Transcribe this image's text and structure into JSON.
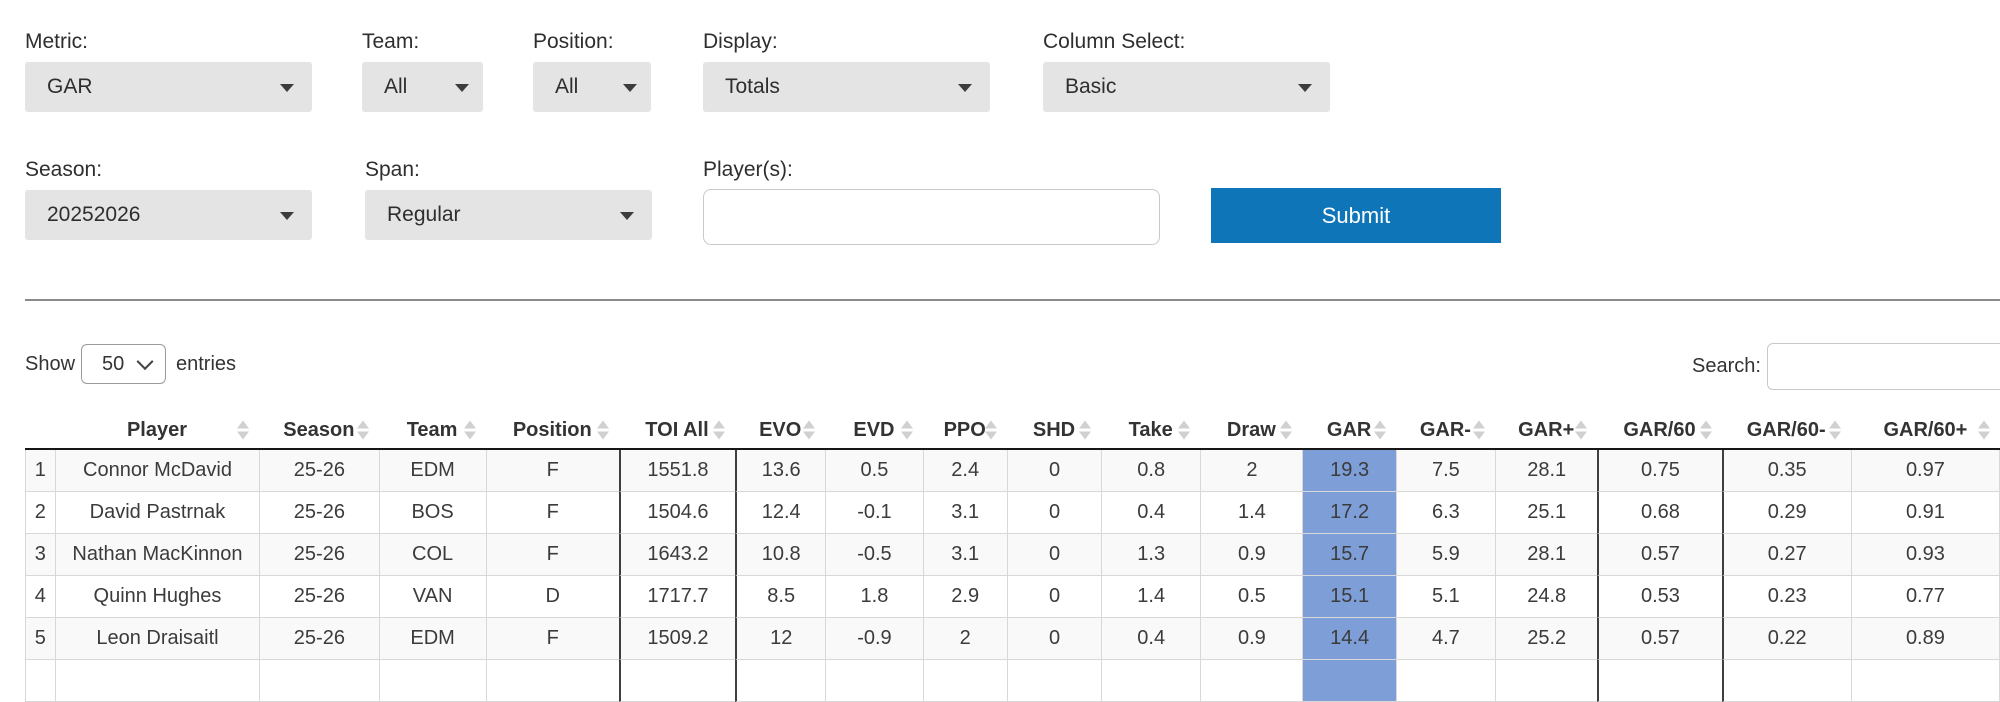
{
  "filters": {
    "metric": {
      "label": "Metric:",
      "value": "GAR"
    },
    "team": {
      "label": "Team:",
      "value": "All"
    },
    "position": {
      "label": "Position:",
      "value": "All"
    },
    "display": {
      "label": "Display:",
      "value": "Totals"
    },
    "column_select": {
      "label": "Column Select:",
      "value": "Basic"
    },
    "season": {
      "label": "Season:",
      "value": "20252026"
    },
    "span": {
      "label": "Span:",
      "value": "Regular"
    },
    "players": {
      "label": "Player(s):",
      "value": ""
    },
    "submit": {
      "label": "Submit"
    }
  },
  "datatable": {
    "show_label": "Show",
    "entries_per_page": "50",
    "entries_label": "entries",
    "search_label": "Search:",
    "search_value": "",
    "highlighted_column": "GAR",
    "columns": [
      "",
      "Player",
      "Season",
      "Team",
      "Position",
      "TOI All",
      "EVO",
      "EVD",
      "PPO",
      "SHD",
      "Take",
      "Draw",
      "GAR",
      "GAR-",
      "GAR+",
      "GAR/60",
      "GAR/60-",
      "GAR/60+"
    ],
    "rows": [
      [
        "1",
        "Connor McDavid",
        "25-26",
        "EDM",
        "F",
        "1551.8",
        "13.6",
        "0.5",
        "2.4",
        "0",
        "0.8",
        "2",
        "19.3",
        "7.5",
        "28.1",
        "0.75",
        "0.35",
        "0.97"
      ],
      [
        "2",
        "David Pastrnak",
        "25-26",
        "BOS",
        "F",
        "1504.6",
        "12.4",
        "-0.1",
        "3.1",
        "0",
        "0.4",
        "1.4",
        "17.2",
        "6.3",
        "25.1",
        "0.68",
        "0.29",
        "0.91"
      ],
      [
        "3",
        "Nathan MacKinnon",
        "25-26",
        "COL",
        "F",
        "1643.2",
        "10.8",
        "-0.5",
        "3.1",
        "0",
        "1.3",
        "0.9",
        "15.7",
        "5.9",
        "28.1",
        "0.57",
        "0.27",
        "0.93"
      ],
      [
        "4",
        "Quinn Hughes",
        "25-26",
        "VAN",
        "D",
        "1717.7",
        "8.5",
        "1.8",
        "2.9",
        "0",
        "1.4",
        "0.5",
        "15.1",
        "5.1",
        "24.8",
        "0.53",
        "0.23",
        "0.77"
      ],
      [
        "5",
        "Leon Draisaitl",
        "25-26",
        "EDM",
        "F",
        "1509.2",
        "12",
        "-0.9",
        "2",
        "0",
        "0.4",
        "0.9",
        "14.4",
        "4.7",
        "25.2",
        "0.57",
        "0.22",
        "0.89"
      ]
    ]
  },
  "colors": {
    "accent_blue": "#0e76b8",
    "gar_highlight": "#7d9ed7",
    "control_gray": "#e4e4e4"
  }
}
